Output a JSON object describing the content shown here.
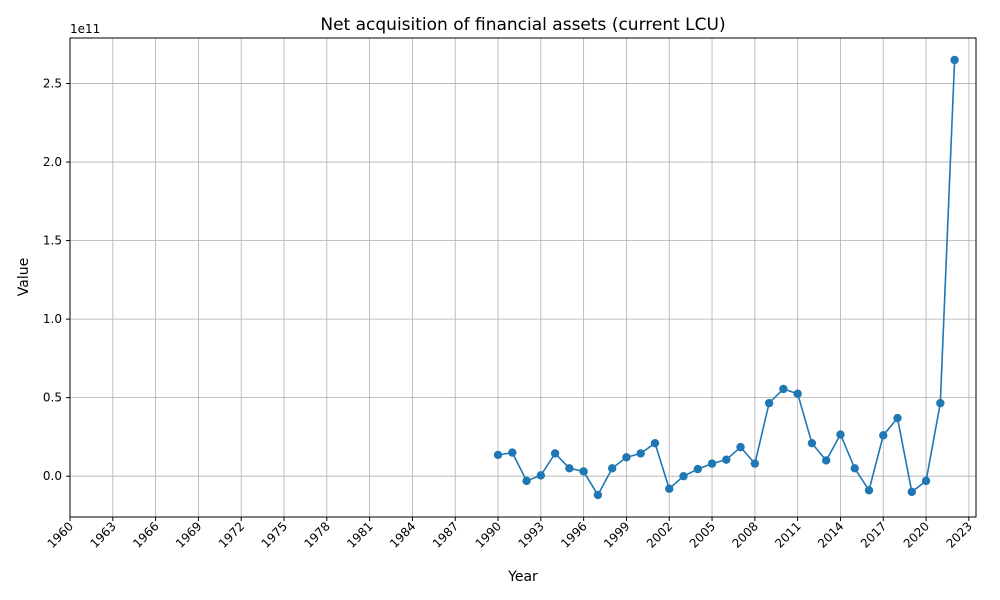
{
  "chart_data": {
    "type": "line",
    "title": "Net acquisition of financial assets (current LCU)",
    "xlabel": "Year",
    "ylabel": "Value",
    "offset_label": "1e11",
    "xlim": [
      1960,
      2023.5
    ],
    "ylim": [
      -0.26,
      2.79
    ],
    "y_scale": 100000000000.0,
    "grid": true,
    "marker": "circle",
    "color": "#1f77b4",
    "x_ticks": [
      1960,
      1963,
      1966,
      1969,
      1972,
      1975,
      1978,
      1981,
      1984,
      1987,
      1990,
      1993,
      1996,
      1999,
      2002,
      2005,
      2008,
      2011,
      2014,
      2017,
      2020,
      2023
    ],
    "y_ticks": [
      0.0,
      0.5,
      1.0,
      1.5,
      2.0,
      2.5
    ],
    "y_tick_labels": [
      "0.0",
      "0.5",
      "1.0",
      "1.5",
      "2.0",
      "2.5"
    ],
    "series": [
      {
        "x": [
          1990,
          1991,
          1992,
          1993,
          1994,
          1995,
          1996,
          1997,
          1998,
          1999,
          2000,
          2001,
          2002,
          2003,
          2004,
          2005,
          2006,
          2007,
          2008,
          2009,
          2010,
          2011,
          2012,
          2013,
          2014,
          2015,
          2016,
          2017,
          2018,
          2019,
          2020,
          2021,
          2022
        ],
        "values": [
          13500000000.0,
          15000000000.0,
          -3000000000.0,
          500000000.0,
          14500000000.0,
          5000000000.0,
          3000000000.0,
          -12000000000.0,
          5000000000.0,
          12000000000.0,
          14500000000.0,
          21000000000.0,
          -8000000000.0,
          0.0,
          4500000000.0,
          8000000000.0,
          10500000000.0,
          18500000000.0,
          8000000000.0,
          46500000000.0,
          55500000000.0,
          52500000000.0,
          21000000000.0,
          10000000000.0,
          26500000000.0,
          5000000000.0,
          -9000000000.0,
          26000000000.0,
          37000000000.0,
          -10000000000.0,
          -3000000000.0,
          46500000000.0,
          265000000000.0
        ]
      }
    ]
  }
}
